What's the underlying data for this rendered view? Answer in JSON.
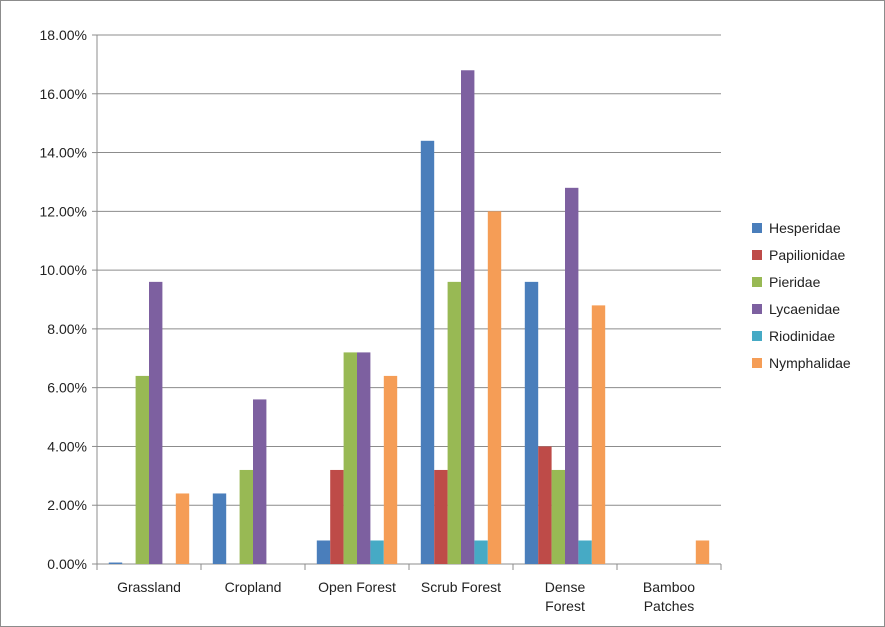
{
  "chart_data": {
    "type": "bar",
    "title": "",
    "xlabel": "",
    "ylabel": "",
    "ylim": [
      0,
      18
    ],
    "y_tick_step": 2,
    "y_tick_format": "percent_2dp",
    "grid": "horizontal",
    "legend_position": "right",
    "categories": [
      [
        "Grassland"
      ],
      [
        "Cropland"
      ],
      [
        "Open Forest"
      ],
      [
        "Scrub Forest"
      ],
      [
        "Dense",
        "Forest"
      ],
      [
        "Bamboo",
        "Patches"
      ]
    ],
    "series": [
      {
        "name": "Hesperidae",
        "color": "#4a7ebb",
        "values": [
          0.05,
          2.4,
          0.8,
          14.4,
          9.6,
          0
        ]
      },
      {
        "name": "Papilionidae",
        "color": "#be4b48",
        "values": [
          0,
          0,
          3.2,
          3.2,
          4.0,
          0
        ]
      },
      {
        "name": "Pieridae",
        "color": "#98b954",
        "values": [
          6.4,
          3.2,
          7.2,
          9.6,
          3.2,
          0
        ]
      },
      {
        "name": "Lycaenidae",
        "color": "#7d60a0",
        "values": [
          9.6,
          5.6,
          7.2,
          16.8,
          12.8,
          0
        ]
      },
      {
        "name": "Riodinidae",
        "color": "#46aac5",
        "values": [
          0,
          0,
          0.8,
          0.8,
          0.8,
          0
        ]
      },
      {
        "name": "Nymphalidae",
        "color": "#f59d56",
        "values": [
          2.4,
          0,
          6.4,
          12.0,
          8.8,
          0.8
        ]
      }
    ]
  }
}
